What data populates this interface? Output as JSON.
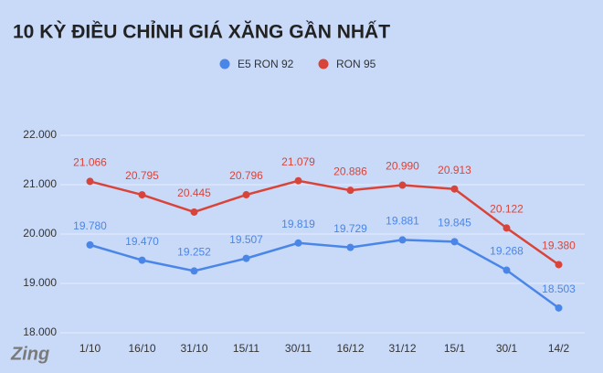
{
  "chart_data": {
    "type": "line",
    "title": "10 KỲ ĐIỀU CHỈNH GIÁ XĂNG GẦN NHẤT",
    "categories": [
      "1/10",
      "16/10",
      "31/10",
      "15/11",
      "30/11",
      "16/12",
      "31/12",
      "15/1",
      "30/1",
      "14/2"
    ],
    "series": [
      {
        "name": "E5 RON 92",
        "color": "#4a86e8",
        "values": [
          19780,
          19470,
          19252,
          19507,
          19819,
          19729,
          19881,
          19845,
          19268,
          18503
        ],
        "value_labels": [
          "19.780",
          "19.470",
          "19.252",
          "19.507",
          "19.819",
          "19.729",
          "19.881",
          "19.845",
          "19.268",
          "18.503"
        ]
      },
      {
        "name": "RON 95",
        "color": "#d9443a",
        "values": [
          21066,
          20795,
          20445,
          20796,
          21079,
          20886,
          20990,
          20913,
          20122,
          19380
        ],
        "value_labels": [
          "21.066",
          "20.795",
          "20.445",
          "20.796",
          "21.079",
          "20.886",
          "20.990",
          "20.913",
          "20.122",
          "19.380"
        ]
      }
    ],
    "ylim": [
      18000,
      22000
    ],
    "yticks": [
      {
        "value": 18000,
        "label": "18.000"
      },
      {
        "value": 19000,
        "label": "19.000"
      },
      {
        "value": 20000,
        "label": "20.000"
      },
      {
        "value": 21000,
        "label": "21.000"
      },
      {
        "value": 22000,
        "label": "22.000"
      }
    ],
    "grid": true,
    "legend": "top",
    "watermark": "Zing"
  }
}
